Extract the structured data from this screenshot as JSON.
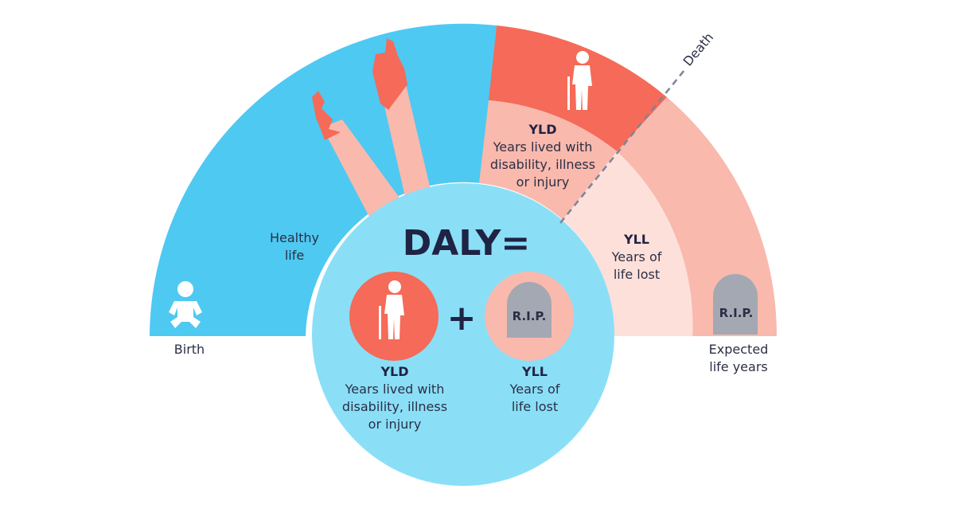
{
  "labels": {
    "death": "Death",
    "healthy_life": [
      "Healthy",
      "life"
    ],
    "birth": "Birth",
    "expected_life_years": [
      "Expected",
      "life years"
    ],
    "arc_yld": {
      "title": "YLD",
      "lines": [
        "Years lived with",
        "disability, illness",
        "or injury"
      ]
    },
    "arc_yll": {
      "title": "YLL",
      "lines": [
        "Years of",
        "life lost"
      ]
    }
  },
  "formula": {
    "title": "DALY=",
    "plus": "+",
    "yld": {
      "title": "YLD",
      "lines": [
        "Years lived with",
        "disability, illness",
        "or injury"
      ]
    },
    "yll": {
      "title": "YLL",
      "lines": [
        "Years of",
        "life lost"
      ]
    }
  },
  "tombstone_text": "R.I.P.",
  "colors": {
    "healthy_blue": "#4ec9f2",
    "circle_blue": "#8adff7",
    "disability_red": "#f56a58",
    "light_pink": "#f9b9ad",
    "pale_pink": "#fde0da",
    "tomb_gray": "#a4a8b3",
    "text_navy": "#1f2344"
  },
  "icons": [
    "baby-icon",
    "elderly-person-icon",
    "tombstone-icon"
  ]
}
